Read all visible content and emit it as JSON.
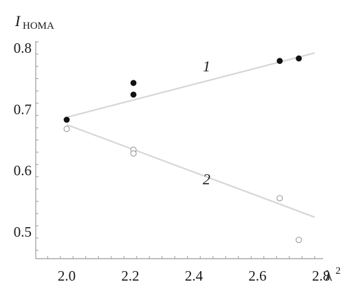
{
  "chart_data": {
    "type": "scatter",
    "title": "",
    "ylabel": {
      "main": "I",
      "sub": "HOMA"
    },
    "xlabel": "λ",
    "xlabel_sup": "2",
    "xlim": [
      1.9,
      2.82
    ],
    "ylim": [
      0.47,
      0.82
    ],
    "xticks": [
      2.0,
      2.2,
      2.4,
      2.6,
      2.8
    ],
    "xtick_labels": [
      "2.0",
      "2.2",
      "2.4",
      "2.6",
      "2.8"
    ],
    "yticks": [
      0.5,
      0.6,
      0.7,
      0.8
    ],
    "ytick_labels": [
      "0.5",
      "0.6",
      "0.7",
      "0.8"
    ],
    "grid": false,
    "series": [
      {
        "name": "1",
        "marker": "filled-circle",
        "color": "#111111",
        "x": [
          2.0,
          2.21,
          2.21,
          2.67,
          2.73
        ],
        "y": [
          0.683,
          0.743,
          0.724,
          0.779,
          0.783
        ],
        "trend": {
          "x": [
            2.0,
            2.78
          ],
          "y": [
            0.687,
            0.792
          ]
        }
      },
      {
        "name": "2",
        "marker": "open-circle",
        "color": "#9a9a9a",
        "x": [
          2.0,
          2.21,
          2.21,
          2.67,
          2.73
        ],
        "y": [
          0.668,
          0.634,
          0.628,
          0.555,
          0.487
        ],
        "trend": {
          "x": [
            2.0,
            2.78
          ],
          "y": [
            0.675,
            0.524
          ]
        }
      }
    ],
    "series_label_positions": [
      {
        "text": "1",
        "x": 2.44,
        "y": 0.762
      },
      {
        "text": "2",
        "x": 2.44,
        "y": 0.578
      }
    ]
  }
}
